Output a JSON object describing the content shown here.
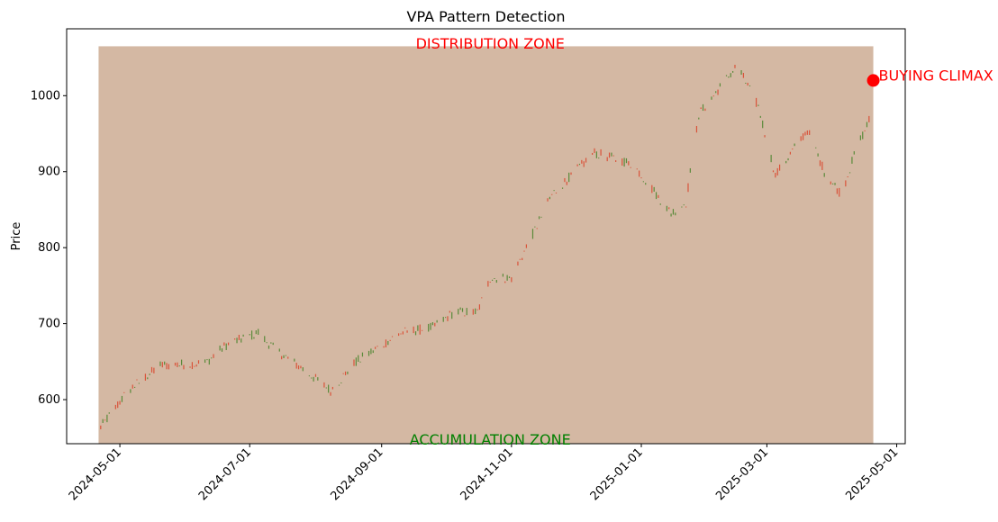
{
  "chart_data": {
    "type": "candlestick",
    "title": "VPA Pattern Detection",
    "xlabel": "",
    "ylabel": "Price",
    "xlim": [
      "2024-04-06",
      "2025-05-05"
    ],
    "ylim": [
      542,
      1088
    ],
    "x_ticks": [
      "2024-05-01",
      "2024-07-01",
      "2024-09-01",
      "2024-11-01",
      "2025-01-01",
      "2025-03-01",
      "2025-05-01"
    ],
    "y_ticks": [
      600,
      700,
      800,
      900,
      1000
    ],
    "grid": false,
    "colors": {
      "up": "#5a8a3a",
      "down": "#d9533a",
      "zone": "#d4b8a3",
      "distribution_text": "#ff0000",
      "accumulation_text": "#008000",
      "climax": "#ff0000"
    },
    "zones": [
      {
        "label": "DISTRIBUTION ZONE",
        "x": "2024-10-22",
        "y": 1068,
        "color": "#ff0000"
      },
      {
        "label": "ACCUMULATION ZONE",
        "x": "2024-10-22",
        "y": 542,
        "color": "#008000"
      }
    ],
    "zone_band": {
      "x_start": "2024-04-21",
      "x_end": "2025-04-20",
      "y_low": 542,
      "y_high": 1065
    },
    "climax": {
      "label": "BUYING CLIMAX",
      "x": "2025-04-20",
      "y": 1020
    },
    "candles": {
      "date_start": "2024-04-21",
      "date_end": "2025-04-20",
      "anchors": [
        [
          "2024-04-21",
          560
        ],
        [
          "2024-05-05",
          612
        ],
        [
          "2024-05-20",
          645
        ],
        [
          "2024-06-10",
          648
        ],
        [
          "2024-06-20",
          672
        ],
        [
          "2024-07-05",
          688
        ],
        [
          "2024-07-12",
          668
        ],
        [
          "2024-07-26",
          640
        ],
        [
          "2024-08-08",
          612
        ],
        [
          "2024-08-20",
          650
        ],
        [
          "2024-09-10",
          688
        ],
        [
          "2024-09-25",
          695
        ],
        [
          "2024-10-05",
          715
        ],
        [
          "2024-10-16",
          715
        ],
        [
          "2024-10-22",
          760
        ],
        [
          "2024-11-01",
          760
        ],
        [
          "2024-11-20",
          870
        ],
        [
          "2024-12-10",
          925
        ],
        [
          "2024-12-28",
          910
        ],
        [
          "2025-01-15",
          845
        ],
        [
          "2025-01-22",
          860
        ],
        [
          "2025-01-28",
          975
        ],
        [
          "2025-02-15",
          1040
        ],
        [
          "2025-02-25",
          985
        ],
        [
          "2025-03-05",
          895
        ],
        [
          "2025-03-20",
          955
        ],
        [
          "2025-03-28",
          900
        ],
        [
          "2025-04-05",
          870
        ],
        [
          "2025-04-12",
          930
        ],
        [
          "2025-04-20",
          980
        ]
      ]
    }
  }
}
